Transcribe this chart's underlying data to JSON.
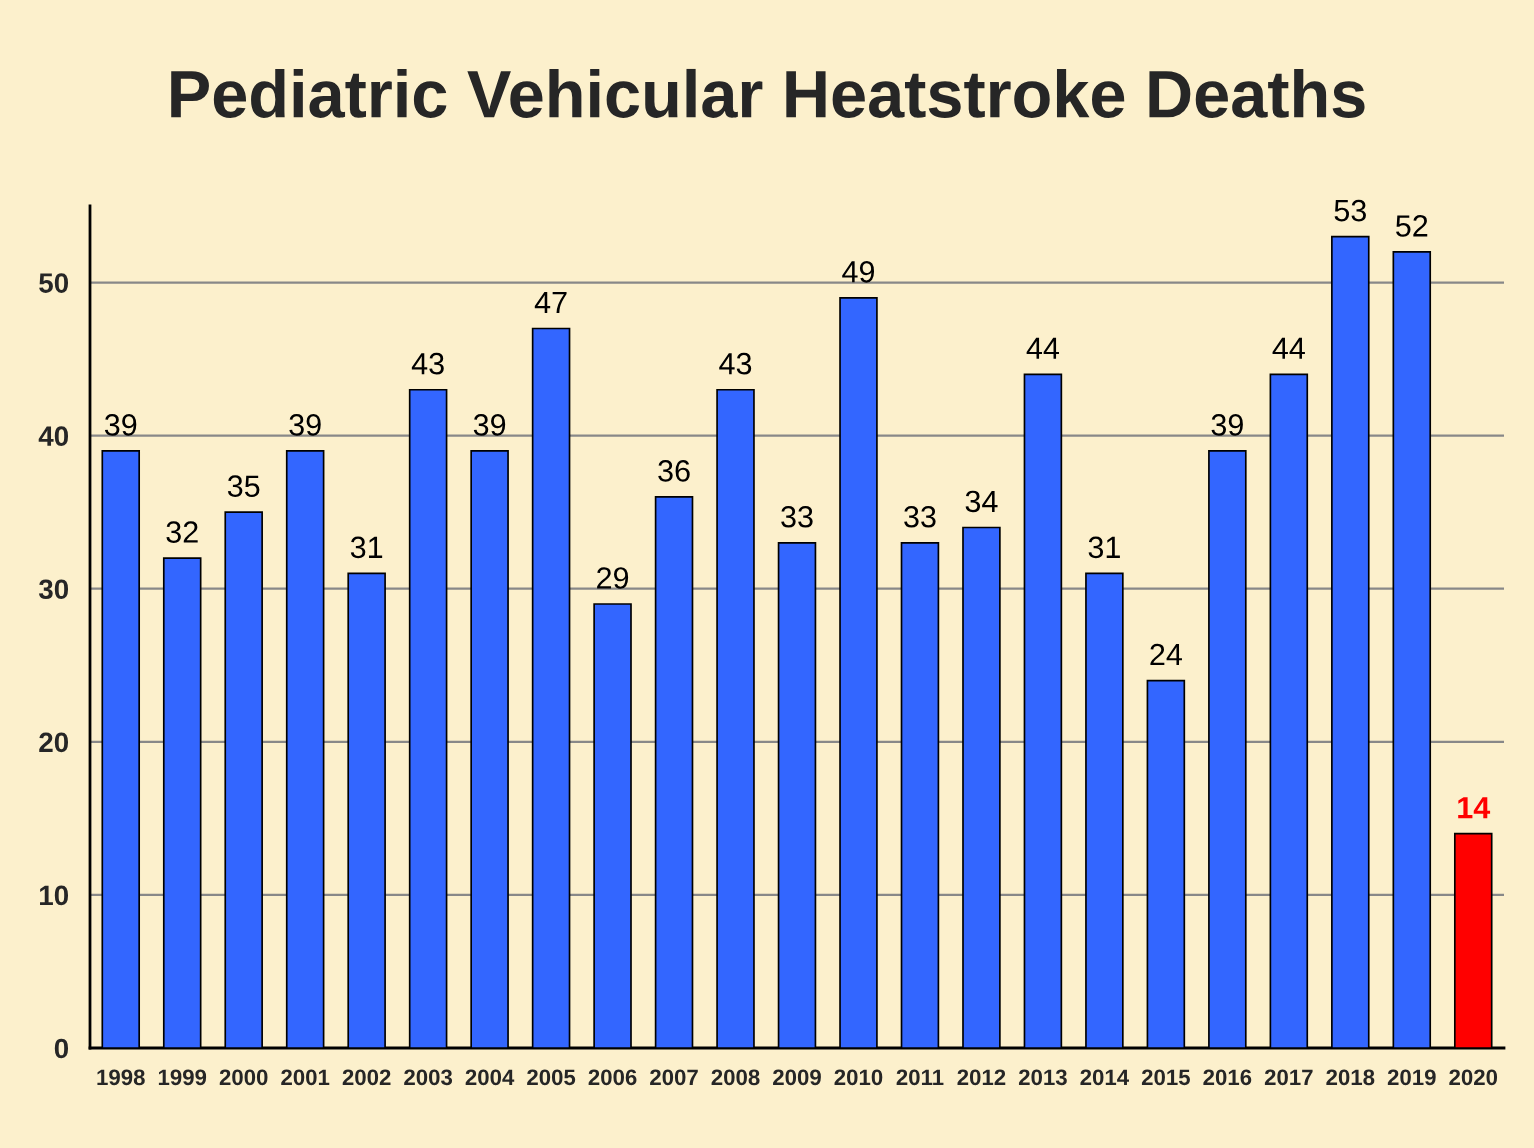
{
  "chart_data": {
    "type": "bar",
    "title": "Pediatric Vehicular Heatstroke Deaths",
    "categories": [
      "1998",
      "1999",
      "2000",
      "2001",
      "2002",
      "2003",
      "2004",
      "2005",
      "2006",
      "2007",
      "2008",
      "2009",
      "2010",
      "2011",
      "2012",
      "2013",
      "2014",
      "2015",
      "2016",
      "2017",
      "2018",
      "2019",
      "2020"
    ],
    "values": [
      39,
      32,
      35,
      39,
      31,
      43,
      39,
      47,
      29,
      36,
      43,
      33,
      49,
      33,
      34,
      44,
      31,
      24,
      39,
      44,
      53,
      52,
      14
    ],
    "colors": [
      "#3366ff",
      "#3366ff",
      "#3366ff",
      "#3366ff",
      "#3366ff",
      "#3366ff",
      "#3366ff",
      "#3366ff",
      "#3366ff",
      "#3366ff",
      "#3366ff",
      "#3366ff",
      "#3366ff",
      "#3366ff",
      "#3366ff",
      "#3366ff",
      "#3366ff",
      "#3366ff",
      "#3366ff",
      "#3366ff",
      "#3366ff",
      "#3366ff",
      "#ff0000"
    ],
    "ylim": [
      0,
      55
    ],
    "yticks": [
      0,
      10,
      20,
      30,
      40,
      50
    ],
    "grid": "y",
    "data_labels": true
  }
}
